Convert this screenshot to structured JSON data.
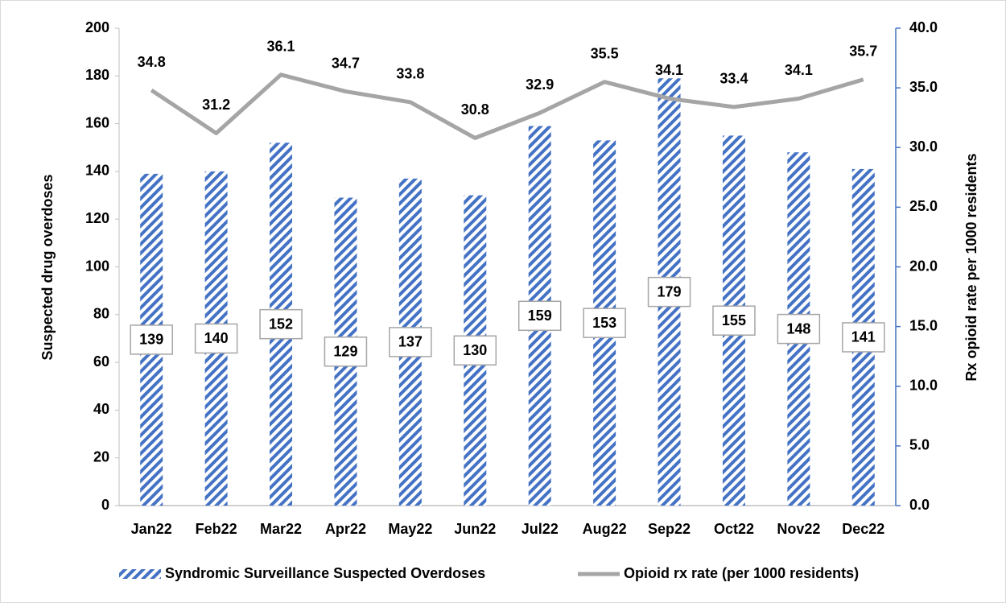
{
  "chart_data": {
    "type": "combo",
    "categories": [
      "Jan22",
      "Feb22",
      "Mar22",
      "Apr22",
      "May22",
      "Jun22",
      "Jul22",
      "Aug22",
      "Sep22",
      "Oct22",
      "Nov22",
      "Dec22"
    ],
    "series": [
      {
        "name": "Syndromic Surveillance Suspected Overdoses",
        "type": "bar",
        "color": "#4472c4",
        "values": [
          139,
          140,
          152,
          129,
          137,
          130,
          159,
          153,
          179,
          155,
          148,
          141
        ]
      },
      {
        "name": "Opioid rx rate (per 1000 residents)",
        "type": "line",
        "axis": "y2",
        "color": "#a5a5a5",
        "values": [
          34.8,
          31.2,
          36.1,
          34.7,
          33.8,
          30.8,
          32.9,
          35.5,
          34.1,
          33.4,
          34.1,
          35.7
        ]
      }
    ],
    "ylabel": "Suspected drug overdoses",
    "y2label": "Rx opioid rate per 1000 residents",
    "ylim": [
      0,
      200
    ],
    "yticks": [
      0,
      20,
      40,
      60,
      80,
      100,
      120,
      140,
      160,
      180,
      200
    ],
    "y2lim": [
      0,
      40
    ],
    "y2ticks": [
      {
        "value": 0,
        "label": "0.0"
      },
      {
        "value": 5,
        "label": "5.0"
      },
      {
        "value": 10,
        "label": "10.0"
      },
      {
        "value": 15,
        "label": "15.0"
      },
      {
        "value": 20,
        "label": "20.0"
      },
      {
        "value": 25,
        "label": "25.0"
      },
      {
        "value": 30,
        "label": "30.0"
      },
      {
        "value": 35,
        "label": "35.0"
      },
      {
        "value": 40,
        "label": "40.0"
      }
    ],
    "grid": false,
    "legend": "bottom"
  }
}
